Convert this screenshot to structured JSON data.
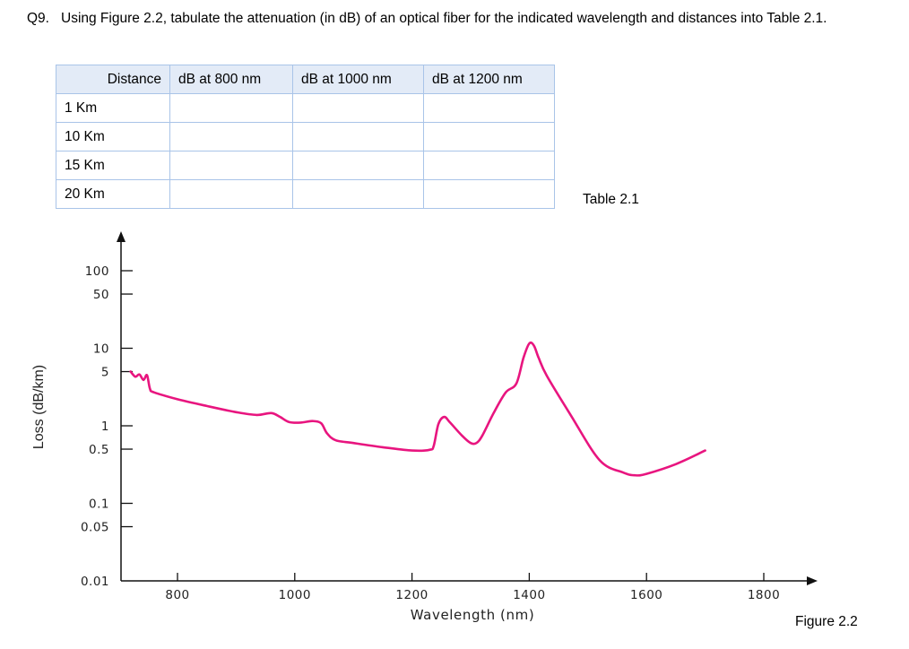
{
  "question": {
    "number": "Q9.",
    "text": "Using Figure 2.2, tabulate the attenuation (in dB) of an optical fiber for the indicated wavelength and distances into Table 2.1."
  },
  "table": {
    "caption": "Table 2.1",
    "headers": [
      "Distance",
      "dB at 800 nm",
      "dB at 1000 nm",
      "dB at 1200 nm"
    ],
    "rows": [
      [
        "1 Km",
        "",
        "",
        ""
      ],
      [
        "10 Km",
        "",
        "",
        ""
      ],
      [
        "15 Km",
        "",
        "",
        ""
      ],
      [
        "20 Km",
        "",
        "",
        ""
      ]
    ]
  },
  "figure": {
    "caption": "Figure 2.2"
  },
  "chart_data": {
    "type": "line",
    "xlabel": "Wavelength (nm)",
    "ylabel": "Loss (dB/km)",
    "y_scale": "log",
    "x_ticks": [
      800,
      1000,
      1200,
      1400,
      1600,
      1800
    ],
    "y_ticks": [
      "100",
      "50",
      "10",
      "5",
      "1",
      "0.5",
      "0.1",
      "0.05",
      "0.01"
    ],
    "y_tick_values": [
      100,
      50,
      10,
      5,
      1,
      0.5,
      0.1,
      0.05,
      0.01
    ],
    "xlim": [
      715,
      1810
    ],
    "ylim": [
      0.01,
      250
    ],
    "line_color": "#e8157f",
    "series": [
      {
        "x": [
          720,
          728,
          735,
          742,
          748,
          753,
          760,
          800,
          850,
          900,
          935,
          960,
          975,
          990,
          1010,
          1030,
          1045,
          1055,
          1070,
          1100,
          1150,
          1200,
          1230,
          1237,
          1245,
          1255,
          1265,
          1285,
          1300,
          1310,
          1320,
          1340,
          1360,
          1378,
          1390,
          1400,
          1408,
          1416,
          1430,
          1470,
          1520,
          1560,
          1580,
          1600,
          1650,
          1700
        ],
        "y": [
          5.0,
          4.3,
          4.6,
          3.9,
          4.5,
          3.0,
          2.7,
          2.2,
          1.8,
          1.5,
          1.38,
          1.46,
          1.3,
          1.12,
          1.1,
          1.15,
          1.08,
          0.8,
          0.65,
          0.6,
          0.53,
          0.48,
          0.49,
          0.55,
          1.05,
          1.3,
          1.1,
          0.75,
          0.6,
          0.6,
          0.75,
          1.5,
          2.7,
          3.5,
          7.5,
          11.5,
          10.8,
          7.5,
          4.4,
          1.4,
          0.36,
          0.25,
          0.23,
          0.24,
          0.32,
          0.48
        ]
      }
    ]
  }
}
